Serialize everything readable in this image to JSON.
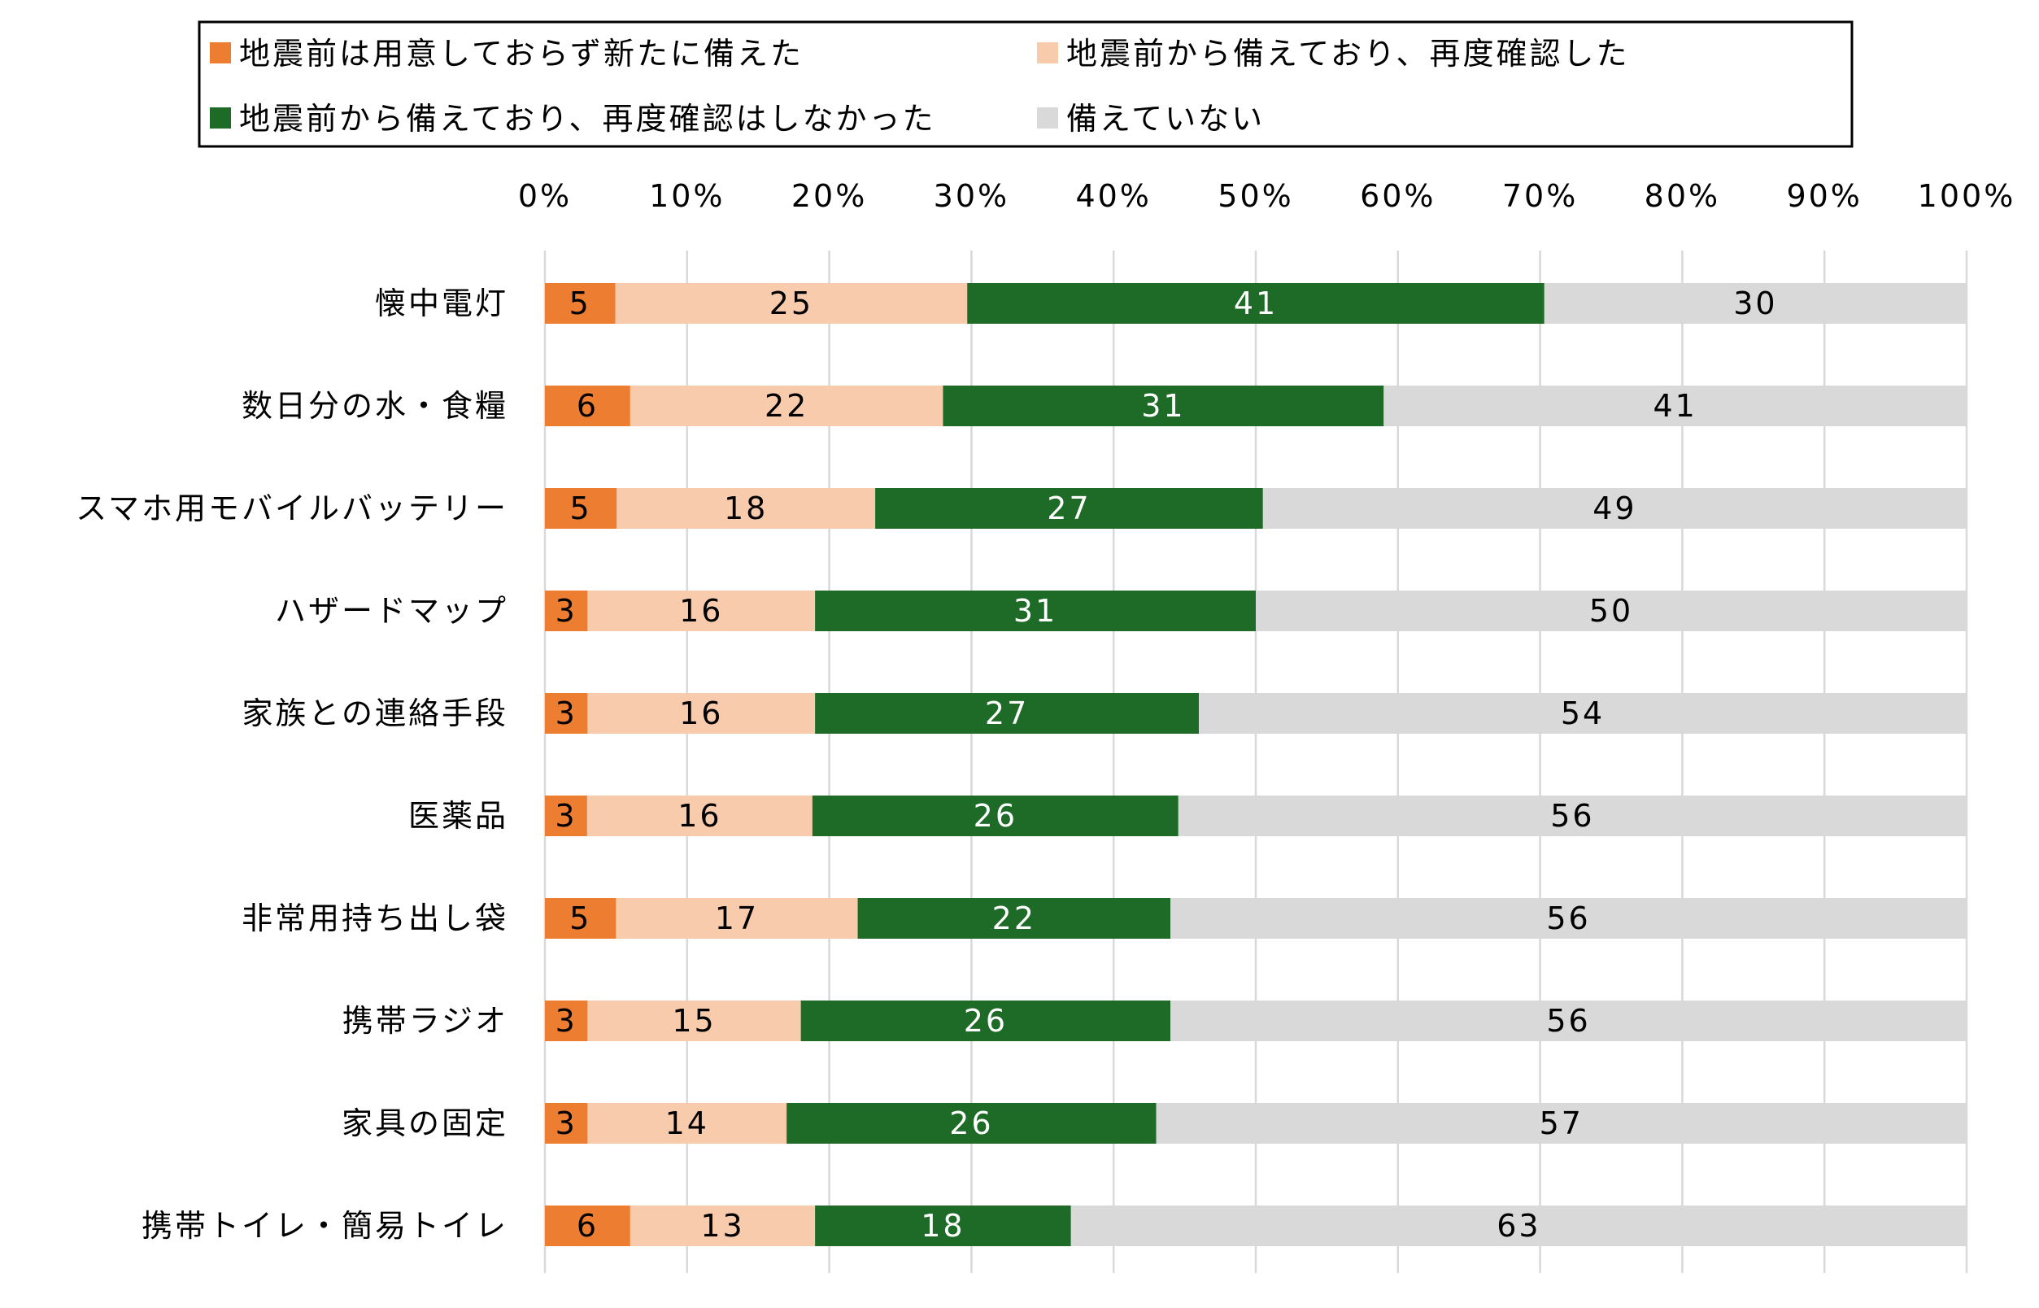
{
  "chart_data": {
    "type": "bar",
    "orientation": "horizontal",
    "stacked": "percent",
    "title": "",
    "xlabel": "",
    "ylabel": "",
    "xlim": [
      0,
      100
    ],
    "x_ticks": [
      "0%",
      "10%",
      "20%",
      "30%",
      "40%",
      "50%",
      "60%",
      "70%",
      "80%",
      "90%",
      "100%"
    ],
    "grid": "vertical",
    "legend": "top",
    "categories": [
      "懐中電灯",
      "数日分の水・食糧",
      "スマホ用モバイルバッテリー",
      "ハザードマップ",
      "家族との連絡手段",
      "医薬品",
      "非常用持ち出し袋",
      "携帯ラジオ",
      "家具の固定",
      "携帯トイレ・簡易トイレ"
    ],
    "series": [
      {
        "name": "地震前は用意しておらず新たに備えた",
        "color": "#ed7d31",
        "label_color": "#000000",
        "values": [
          5,
          6,
          5,
          3,
          3,
          3,
          5,
          3,
          3,
          6
        ]
      },
      {
        "name": "地震前から備えており、再度確認した",
        "color": "#f8cbad",
        "label_color": "#000000",
        "values": [
          25,
          22,
          18,
          16,
          16,
          16,
          17,
          15,
          14,
          13
        ]
      },
      {
        "name": "地震前から備えており、再度確認はしなかった",
        "color": "#1e6b28",
        "label_color": "#ffffff",
        "values": [
          41,
          31,
          27,
          31,
          27,
          26,
          22,
          26,
          26,
          18
        ]
      },
      {
        "name": "備えていない",
        "color": "#d9d9d9",
        "label_color": "#000000",
        "values": [
          30,
          41,
          49,
          50,
          54,
          56,
          56,
          56,
          57,
          63
        ]
      }
    ]
  }
}
